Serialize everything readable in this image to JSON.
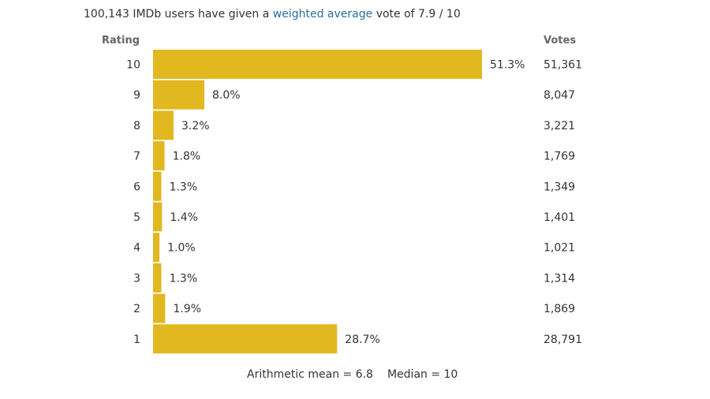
{
  "headline": {
    "prefix": "100,143 IMDb users have given a ",
    "link": "weighted average",
    "suffix": " vote of 7.9 / 10"
  },
  "columns": {
    "rating": "Rating",
    "votes": "Votes"
  },
  "footer": {
    "mean": "Arithmetic mean = 6.8",
    "median": "Median = 10"
  },
  "colors": {
    "bar": "#e2b820",
    "link": "#2a6fa0"
  },
  "chart_data": {
    "type": "bar",
    "orientation": "horizontal",
    "title": "100,143 IMDb users have given a weighted average vote of 7.9 / 10",
    "xlabel": "",
    "ylabel": "Rating",
    "categories": [
      "10",
      "9",
      "8",
      "7",
      "6",
      "5",
      "4",
      "3",
      "2",
      "1"
    ],
    "values": [
      51.3,
      8.0,
      3.2,
      1.8,
      1.3,
      1.4,
      1.0,
      1.3,
      1.9,
      28.7
    ],
    "value_labels": [
      "51.3%",
      "8.0%",
      "3.2%",
      "1.8%",
      "1.3%",
      "1.4%",
      "1.0%",
      "1.3%",
      "1.9%",
      "28.7%"
    ],
    "votes": [
      "51,361",
      "8,047",
      "3,221",
      "1,769",
      "1,349",
      "1,401",
      "1,021",
      "1,314",
      "1,869",
      "28,791"
    ],
    "unit": "%",
    "xlim": [
      0,
      51.3
    ],
    "grid": false,
    "legend": "none"
  }
}
